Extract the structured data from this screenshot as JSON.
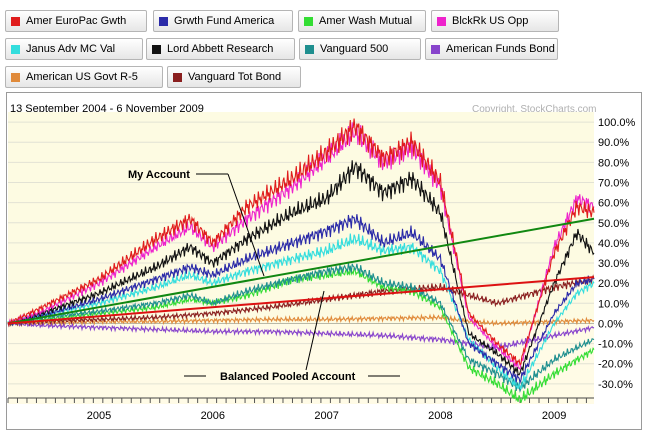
{
  "legend": [
    {
      "name": "Amer EuroPac Gwth",
      "color": "#e01c1c"
    },
    {
      "name": "Grwth Fund America",
      "color": "#2a2aa8"
    },
    {
      "name": "Amer Wash Mutual",
      "color": "#33dd33"
    },
    {
      "name": "BlckRk US Opp",
      "color": "#ee22cc"
    },
    {
      "name": "Janus Adv MC Val",
      "color": "#33dddd"
    },
    {
      "name": "Lord Abbett Research",
      "color": "#111111"
    },
    {
      "name": "Vanguard 500",
      "color": "#1f8f8f"
    },
    {
      "name": "American Funds Bond",
      "color": "#8844cc"
    },
    {
      "name": "American US Govt R-5",
      "color": "#e08a3a"
    },
    {
      "name": "Vanguard Tot Bond",
      "color": "#8a1f1f"
    }
  ],
  "chart_data": {
    "type": "line",
    "date_range": "13 September 2004 - 6 November 2009",
    "copyright": "Copyright, StockCharts.com",
    "x_ticks": [
      "2005",
      "2006",
      "2007",
      "2008",
      "2009"
    ],
    "y_ticks": [
      "100.0%",
      "90.0%",
      "80.0%",
      "70.0%",
      "60.0%",
      "50.0%",
      "40.0%",
      "30.0%",
      "20.0%",
      "10.0%",
      "0.0%",
      "-10.0%",
      "-20.0%",
      "-30.0%"
    ],
    "ylim": [
      -40,
      105
    ],
    "xlim": [
      2004.7,
      2009.85
    ],
    "grid": true,
    "legend_position": "top",
    "series": [
      {
        "name": "Amer EuroPac Gwth",
        "color": "#e01c1c",
        "values": [
          [
            2004.7,
            0
          ],
          [
            2005.0,
            8
          ],
          [
            2005.5,
            22
          ],
          [
            2006.0,
            42
          ],
          [
            2006.3,
            52
          ],
          [
            2006.5,
            40
          ],
          [
            2006.8,
            58
          ],
          [
            2007.2,
            72
          ],
          [
            2007.5,
            85
          ],
          [
            2007.75,
            98
          ],
          [
            2008.0,
            82
          ],
          [
            2008.25,
            90
          ],
          [
            2008.5,
            70
          ],
          [
            2008.75,
            5
          ],
          [
            2009.0,
            -10
          ],
          [
            2009.2,
            -20
          ],
          [
            2009.5,
            35
          ],
          [
            2009.7,
            58
          ],
          [
            2009.85,
            55
          ]
        ]
      },
      {
        "name": "BlckRk US Opp",
        "color": "#ee22cc",
        "values": [
          [
            2004.7,
            0
          ],
          [
            2005.0,
            6
          ],
          [
            2005.5,
            20
          ],
          [
            2006.0,
            38
          ],
          [
            2006.3,
            48
          ],
          [
            2006.5,
            38
          ],
          [
            2006.8,
            52
          ],
          [
            2007.2,
            68
          ],
          [
            2007.5,
            82
          ],
          [
            2007.75,
            95
          ],
          [
            2008.0,
            80
          ],
          [
            2008.25,
            88
          ],
          [
            2008.5,
            68
          ],
          [
            2008.75,
            3
          ],
          [
            2009.0,
            -12
          ],
          [
            2009.2,
            -22
          ],
          [
            2009.5,
            38
          ],
          [
            2009.7,
            62
          ],
          [
            2009.85,
            58
          ]
        ]
      },
      {
        "name": "Lord Abbett Research",
        "color": "#111111",
        "values": [
          [
            2004.7,
            0
          ],
          [
            2005.0,
            5
          ],
          [
            2005.5,
            15
          ],
          [
            2006.0,
            28
          ],
          [
            2006.3,
            38
          ],
          [
            2006.5,
            30
          ],
          [
            2006.8,
            42
          ],
          [
            2007.2,
            55
          ],
          [
            2007.5,
            62
          ],
          [
            2007.75,
            78
          ],
          [
            2008.0,
            65
          ],
          [
            2008.25,
            72
          ],
          [
            2008.5,
            55
          ],
          [
            2008.75,
            -5
          ],
          [
            2009.0,
            -15
          ],
          [
            2009.2,
            -25
          ],
          [
            2009.5,
            20
          ],
          [
            2009.7,
            45
          ],
          [
            2009.85,
            35
          ]
        ]
      },
      {
        "name": "Grwth Fund America",
        "color": "#2a2aa8",
        "values": [
          [
            2004.7,
            0
          ],
          [
            2005.0,
            4
          ],
          [
            2005.5,
            12
          ],
          [
            2006.0,
            22
          ],
          [
            2006.3,
            28
          ],
          [
            2006.5,
            24
          ],
          [
            2006.8,
            32
          ],
          [
            2007.2,
            40
          ],
          [
            2007.5,
            46
          ],
          [
            2007.75,
            52
          ],
          [
            2008.0,
            40
          ],
          [
            2008.25,
            45
          ],
          [
            2008.5,
            32
          ],
          [
            2008.75,
            -10
          ],
          [
            2009.0,
            -20
          ],
          [
            2009.2,
            -28
          ],
          [
            2009.5,
            5
          ],
          [
            2009.7,
            20
          ],
          [
            2009.85,
            22
          ]
        ]
      },
      {
        "name": "Janus Adv MC Val",
        "color": "#33dddd",
        "values": [
          [
            2004.7,
            0
          ],
          [
            2005.0,
            4
          ],
          [
            2005.5,
            10
          ],
          [
            2006.0,
            18
          ],
          [
            2006.3,
            24
          ],
          [
            2006.5,
            20
          ],
          [
            2006.8,
            26
          ],
          [
            2007.2,
            32
          ],
          [
            2007.5,
            36
          ],
          [
            2007.75,
            42
          ],
          [
            2008.0,
            36
          ],
          [
            2008.25,
            38
          ],
          [
            2008.5,
            26
          ],
          [
            2008.75,
            -8
          ],
          [
            2009.0,
            -22
          ],
          [
            2009.2,
            -32
          ],
          [
            2009.5,
            0
          ],
          [
            2009.7,
            15
          ],
          [
            2009.85,
            20
          ]
        ]
      },
      {
        "name": "Vanguard 500",
        "color": "#1f8f8f",
        "values": [
          [
            2004.7,
            0
          ],
          [
            2005.0,
            3
          ],
          [
            2005.5,
            6
          ],
          [
            2006.0,
            10
          ],
          [
            2006.3,
            14
          ],
          [
            2006.5,
            10
          ],
          [
            2006.8,
            16
          ],
          [
            2007.2,
            22
          ],
          [
            2007.5,
            26
          ],
          [
            2007.75,
            28
          ],
          [
            2008.0,
            20
          ],
          [
            2008.25,
            18
          ],
          [
            2008.5,
            10
          ],
          [
            2008.75,
            -18
          ],
          [
            2009.0,
            -25
          ],
          [
            2009.2,
            -32
          ],
          [
            2009.5,
            -18
          ],
          [
            2009.7,
            -12
          ],
          [
            2009.85,
            -8
          ]
        ]
      },
      {
        "name": "Amer Wash Mutual",
        "color": "#33dd33",
        "values": [
          [
            2004.7,
            0
          ],
          [
            2005.0,
            2
          ],
          [
            2005.5,
            5
          ],
          [
            2006.0,
            8
          ],
          [
            2006.3,
            12
          ],
          [
            2006.5,
            10
          ],
          [
            2006.8,
            14
          ],
          [
            2007.2,
            22
          ],
          [
            2007.5,
            24
          ],
          [
            2007.75,
            26
          ],
          [
            2008.0,
            18
          ],
          [
            2008.25,
            16
          ],
          [
            2008.5,
            8
          ],
          [
            2008.75,
            -22
          ],
          [
            2009.0,
            -30
          ],
          [
            2009.2,
            -38
          ],
          [
            2009.5,
            -25
          ],
          [
            2009.7,
            -18
          ],
          [
            2009.85,
            -13
          ]
        ]
      },
      {
        "name": "Vanguard Tot Bond",
        "color": "#8a1f1f",
        "values": [
          [
            2004.7,
            0
          ],
          [
            2005.0,
            1
          ],
          [
            2005.5,
            2
          ],
          [
            2006.0,
            3
          ],
          [
            2006.5,
            5
          ],
          [
            2007.0,
            8
          ],
          [
            2007.5,
            12
          ],
          [
            2008.0,
            16
          ],
          [
            2008.5,
            18
          ],
          [
            2008.75,
            14
          ],
          [
            2009.0,
            10
          ],
          [
            2009.5,
            18
          ],
          [
            2009.85,
            22
          ]
        ]
      },
      {
        "name": "American Funds Bond",
        "color": "#8844cc",
        "values": [
          [
            2004.7,
            0
          ],
          [
            2005.0,
            -1
          ],
          [
            2005.5,
            -2
          ],
          [
            2006.0,
            -3
          ],
          [
            2006.5,
            -4
          ],
          [
            2007.0,
            -4
          ],
          [
            2007.5,
            -5
          ],
          [
            2008.0,
            -6
          ],
          [
            2008.5,
            -8
          ],
          [
            2008.75,
            -10
          ],
          [
            2009.0,
            -12
          ],
          [
            2009.5,
            -6
          ],
          [
            2009.85,
            -2
          ]
        ]
      },
      {
        "name": "American US Govt R-5",
        "color": "#e08a3a",
        "values": [
          [
            2004.7,
            0
          ],
          [
            2005.0,
            0.5
          ],
          [
            2005.5,
            1
          ],
          [
            2006.0,
            1
          ],
          [
            2006.5,
            1.5
          ],
          [
            2007.0,
            2
          ],
          [
            2007.5,
            2
          ],
          [
            2008.0,
            2.5
          ],
          [
            2008.5,
            3
          ],
          [
            2008.75,
            1
          ],
          [
            2009.0,
            0
          ],
          [
            2009.5,
            1
          ],
          [
            2009.85,
            1.5
          ]
        ]
      }
    ],
    "trendlines": [
      {
        "label": "My Account",
        "color": "#118811",
        "from": [
          2004.7,
          0
        ],
        "to": [
          2009.85,
          52
        ]
      },
      {
        "label": "Balanced Pooled Account",
        "color": "#dd1111",
        "from": [
          2004.7,
          0
        ],
        "to": [
          2009.85,
          23
        ]
      }
    ]
  }
}
